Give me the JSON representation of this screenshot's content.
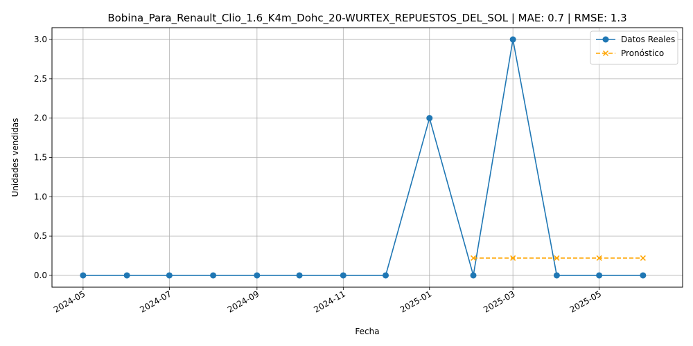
{
  "chart_data": {
    "type": "line",
    "title": "Bobina_Para_Renault_Clio_1.6_K4m_Dohc_20-WURTEX_REPUESTOS_DEL_SOL | MAE: 0.7 | RMSE: 1.3",
    "xlabel": "Fecha",
    "ylabel": "Unidades vendidas",
    "grid": true,
    "legend": "top-right",
    "xlim": [
      "2024-04-09",
      "2025-06-29"
    ],
    "ylim": [
      -0.15,
      3.15
    ],
    "x_ticks": [
      "2024-05",
      "2024-07",
      "2024-09",
      "2024-11",
      "2025-01",
      "2025-03",
      "2025-05"
    ],
    "y_ticks": [
      "0.0",
      "0.5",
      "1.0",
      "1.5",
      "2.0",
      "2.5",
      "3.0"
    ],
    "series": [
      {
        "name": "Datos Reales",
        "color": "#1f77b4",
        "style": "solid",
        "marker": "circle",
        "points": [
          {
            "x": "2024-05-01",
            "y": 0
          },
          {
            "x": "2024-06-01",
            "y": 0
          },
          {
            "x": "2024-07-01",
            "y": 0
          },
          {
            "x": "2024-08-01",
            "y": 0
          },
          {
            "x": "2024-09-01",
            "y": 0
          },
          {
            "x": "2024-10-01",
            "y": 0
          },
          {
            "x": "2024-11-01",
            "y": 0
          },
          {
            "x": "2024-12-01",
            "y": 0
          },
          {
            "x": "2025-01-01",
            "y": 2
          },
          {
            "x": "2025-02-01",
            "y": 0
          },
          {
            "x": "2025-03-01",
            "y": 3
          },
          {
            "x": "2025-04-01",
            "y": 0
          },
          {
            "x": "2025-05-01",
            "y": 0
          },
          {
            "x": "2025-06-01",
            "y": 0
          }
        ]
      },
      {
        "name": "Pronóstico",
        "color": "#ffa500",
        "style": "dashed",
        "marker": "x",
        "points": [
          {
            "x": "2025-02-01",
            "y": 0.22
          },
          {
            "x": "2025-03-01",
            "y": 0.22
          },
          {
            "x": "2025-04-01",
            "y": 0.22
          },
          {
            "x": "2025-05-01",
            "y": 0.22
          },
          {
            "x": "2025-06-01",
            "y": 0.22
          }
        ]
      }
    ]
  }
}
